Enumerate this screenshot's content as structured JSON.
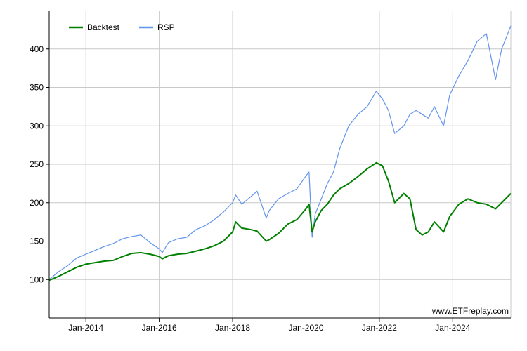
{
  "chart_data": {
    "type": "line",
    "title": "",
    "xlabel": "",
    "ylabel": "",
    "x_ticks": [
      "Jan-2014",
      "Jan-2016",
      "Jan-2018",
      "Jan-2020",
      "Jan-2022",
      "Jan-2024"
    ],
    "x_range": [
      "2013-01",
      "2025-08"
    ],
    "y_ticks": [
      100,
      150,
      200,
      250,
      300,
      350,
      400
    ],
    "ylim": [
      50,
      450
    ],
    "grid": true,
    "legend_position": "top-left",
    "series": [
      {
        "name": "Backtest",
        "color": "#008000",
        "points": [
          [
            "2013-01",
            99
          ],
          [
            "2013-04",
            104
          ],
          [
            "2013-07",
            110
          ],
          [
            "2013-10",
            116
          ],
          [
            "2014-01",
            120
          ],
          [
            "2014-04",
            122
          ],
          [
            "2014-07",
            124
          ],
          [
            "2014-10",
            125
          ],
          [
            "2015-01",
            130
          ],
          [
            "2015-04",
            134
          ],
          [
            "2015-07",
            135
          ],
          [
            "2015-10",
            133
          ],
          [
            "2016-01",
            130
          ],
          [
            "2016-02",
            127
          ],
          [
            "2016-04",
            131
          ],
          [
            "2016-07",
            133
          ],
          [
            "2016-10",
            134
          ],
          [
            "2017-01",
            137
          ],
          [
            "2017-04",
            140
          ],
          [
            "2017-07",
            144
          ],
          [
            "2017-10",
            150
          ],
          [
            "2018-01",
            162
          ],
          [
            "2018-02",
            175
          ],
          [
            "2018-04",
            167
          ],
          [
            "2018-07",
            165
          ],
          [
            "2018-09",
            163
          ],
          [
            "2018-12",
            150
          ],
          [
            "2019-01",
            152
          ],
          [
            "2019-04",
            160
          ],
          [
            "2019-07",
            172
          ],
          [
            "2019-10",
            178
          ],
          [
            "2020-01",
            192
          ],
          [
            "2020-02",
            198
          ],
          [
            "2020-03",
            162
          ],
          [
            "2020-04",
            175
          ],
          [
            "2020-06",
            190
          ],
          [
            "2020-08",
            198
          ],
          [
            "2020-10",
            210
          ],
          [
            "2020-12",
            218
          ],
          [
            "2021-03",
            225
          ],
          [
            "2021-06",
            234
          ],
          [
            "2021-09",
            244
          ],
          [
            "2021-12",
            252
          ],
          [
            "2022-02",
            248
          ],
          [
            "2022-04",
            228
          ],
          [
            "2022-06",
            200
          ],
          [
            "2022-09",
            212
          ],
          [
            "2022-11",
            205
          ],
          [
            "2023-01",
            165
          ],
          [
            "2023-03",
            158
          ],
          [
            "2023-05",
            162
          ],
          [
            "2023-07",
            175
          ],
          [
            "2023-10",
            162
          ],
          [
            "2023-12",
            182
          ],
          [
            "2024-03",
            198
          ],
          [
            "2024-06",
            205
          ],
          [
            "2024-09",
            200
          ],
          [
            "2024-12",
            198
          ],
          [
            "2025-03",
            192
          ],
          [
            "2025-05",
            200
          ],
          [
            "2025-08",
            212
          ]
        ]
      },
      {
        "name": "RSP",
        "color": "#6495ED",
        "points": [
          [
            "2013-01",
            100
          ],
          [
            "2013-04",
            110
          ],
          [
            "2013-07",
            118
          ],
          [
            "2013-10",
            128
          ],
          [
            "2014-01",
            133
          ],
          [
            "2014-04",
            138
          ],
          [
            "2014-07",
            143
          ],
          [
            "2014-10",
            147
          ],
          [
            "2015-01",
            153
          ],
          [
            "2015-04",
            156
          ],
          [
            "2015-07",
            158
          ],
          [
            "2015-10",
            148
          ],
          [
            "2016-01",
            140
          ],
          [
            "2016-02",
            135
          ],
          [
            "2016-04",
            148
          ],
          [
            "2016-07",
            153
          ],
          [
            "2016-10",
            155
          ],
          [
            "2017-01",
            165
          ],
          [
            "2017-04",
            170
          ],
          [
            "2017-07",
            178
          ],
          [
            "2017-10",
            188
          ],
          [
            "2018-01",
            200
          ],
          [
            "2018-02",
            210
          ],
          [
            "2018-04",
            198
          ],
          [
            "2018-07",
            208
          ],
          [
            "2018-09",
            215
          ],
          [
            "2018-12",
            180
          ],
          [
            "2019-01",
            190
          ],
          [
            "2019-04",
            205
          ],
          [
            "2019-07",
            212
          ],
          [
            "2019-10",
            218
          ],
          [
            "2020-01",
            235
          ],
          [
            "2020-02",
            240
          ],
          [
            "2020-03",
            155
          ],
          [
            "2020-04",
            185
          ],
          [
            "2020-06",
            205
          ],
          [
            "2020-08",
            225
          ],
          [
            "2020-10",
            240
          ],
          [
            "2020-12",
            270
          ],
          [
            "2021-03",
            300
          ],
          [
            "2021-06",
            315
          ],
          [
            "2021-09",
            325
          ],
          [
            "2021-12",
            345
          ],
          [
            "2022-02",
            335
          ],
          [
            "2022-04",
            320
          ],
          [
            "2022-06",
            290
          ],
          [
            "2022-09",
            300
          ],
          [
            "2022-11",
            315
          ],
          [
            "2023-01",
            320
          ],
          [
            "2023-03",
            315
          ],
          [
            "2023-05",
            310
          ],
          [
            "2023-07",
            325
          ],
          [
            "2023-10",
            300
          ],
          [
            "2023-12",
            340
          ],
          [
            "2024-03",
            365
          ],
          [
            "2024-06",
            385
          ],
          [
            "2024-09",
            410
          ],
          [
            "2024-12",
            420
          ],
          [
            "2025-03",
            360
          ],
          [
            "2025-05",
            400
          ],
          [
            "2025-08",
            430
          ]
        ]
      }
    ],
    "annotations": [
      "www.ETFreplay.com"
    ]
  }
}
